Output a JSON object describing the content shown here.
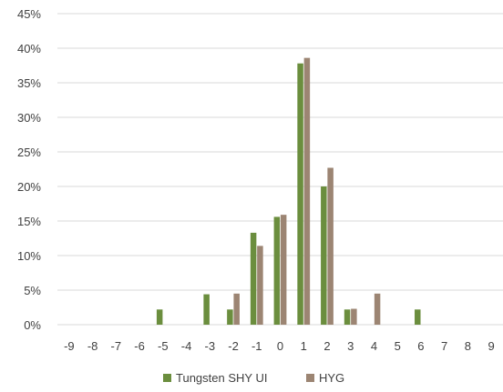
{
  "chart_data": {
    "type": "bar",
    "categories": [
      "-9",
      "-8",
      "-7",
      "-6",
      "-5",
      "-4",
      "-3",
      "-2",
      "-1",
      "0",
      "1",
      "2",
      "3",
      "4",
      "5",
      "6",
      "7",
      "8",
      "9"
    ],
    "series": [
      {
        "name": "Tungsten SHY UI",
        "color": "#6b8e3e",
        "values": [
          0,
          0,
          0,
          0,
          2.2,
          0,
          4.4,
          2.2,
          13.3,
          15.6,
          37.8,
          20.0,
          2.2,
          0,
          0,
          2.2,
          0,
          0,
          0
        ]
      },
      {
        "name": "HYG",
        "color": "#9c8573",
        "values": [
          0,
          0,
          0,
          0,
          0,
          0,
          0,
          4.5,
          11.4,
          15.9,
          38.6,
          22.7,
          2.3,
          4.5,
          0,
          0,
          0,
          0,
          0
        ]
      }
    ],
    "ylim": [
      0,
      45
    ],
    "yticks": [
      "0%",
      "5%",
      "10%",
      "15%",
      "20%",
      "25%",
      "30%",
      "35%",
      "40%",
      "45%"
    ],
    "grid": true,
    "legend_position": "bottom"
  }
}
